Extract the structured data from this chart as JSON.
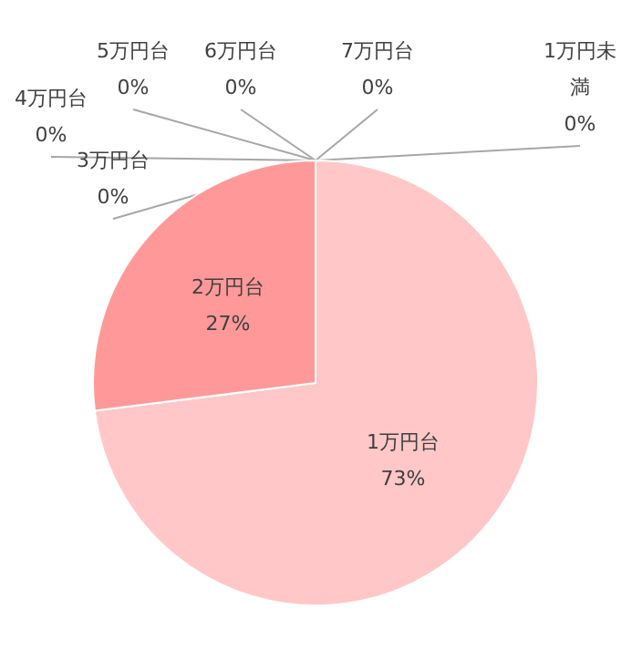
{
  "chart_data": {
    "type": "pie",
    "categories": [
      "1万円未満",
      "1万円台",
      "2万円台",
      "3万円台",
      "4万円台",
      "5万円台",
      "6万円台",
      "7万円台"
    ],
    "values": [
      0,
      73,
      27,
      0,
      0,
      0,
      0,
      0
    ],
    "value_labels": [
      "0%",
      "73%",
      "27%",
      "0%",
      "0%",
      "0%",
      "0%",
      "0%"
    ],
    "colors": [
      "#ffe0e0",
      "#ffc7c7",
      "#ff9999",
      "#ff7f7f",
      "#ff6666",
      "#e65c5c",
      "#cc5252",
      "#b34747"
    ]
  }
}
